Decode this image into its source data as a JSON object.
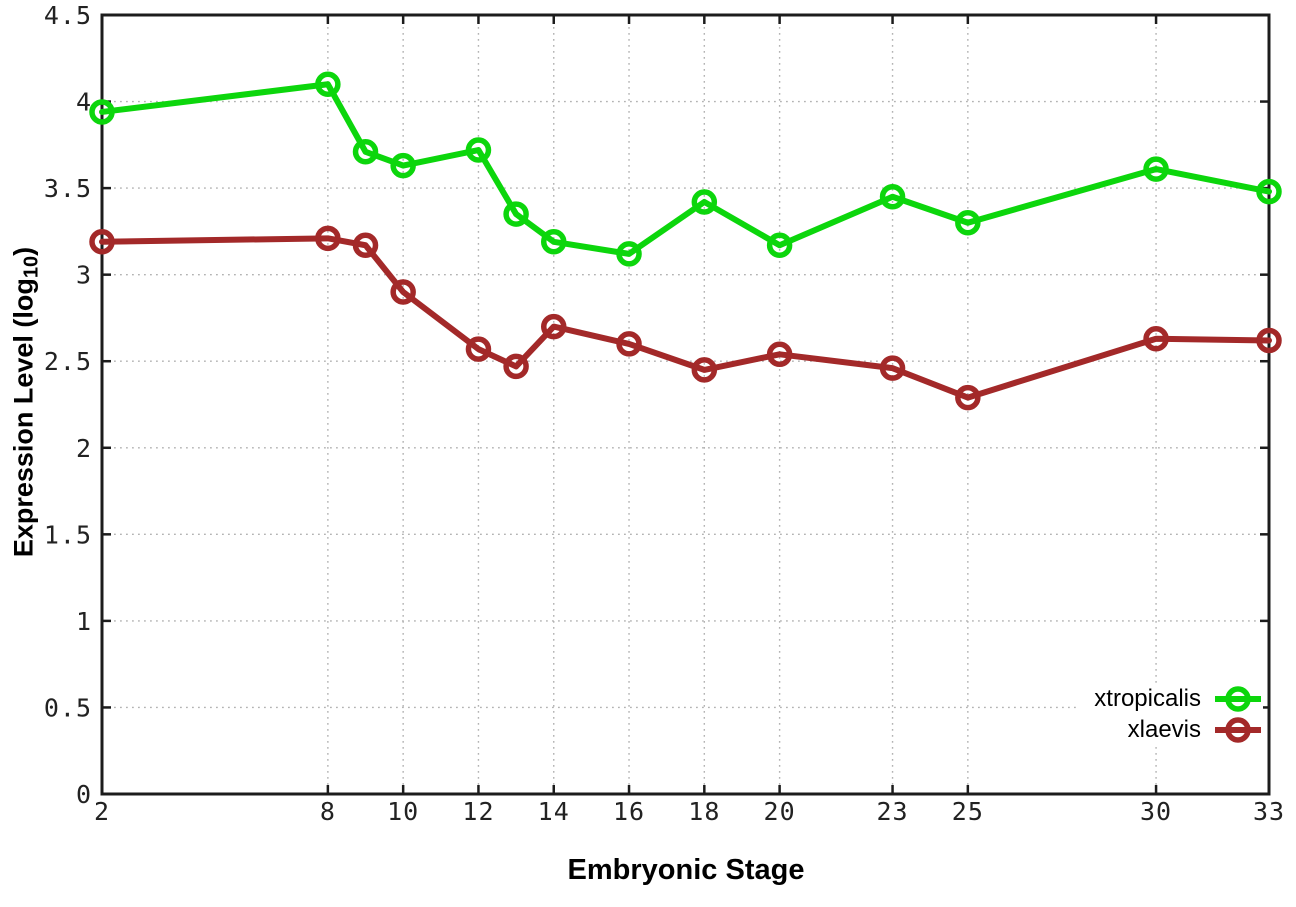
{
  "chart_data": {
    "type": "line",
    "title": "",
    "xlabel": "Embryonic Stage",
    "ylabel": "Expression Level (log10)",
    "ylabel_parts": {
      "main": "Expression Level (log",
      "sub": "10",
      "close": ")"
    },
    "x": [
      2,
      8,
      9,
      10,
      12,
      13,
      14,
      16,
      18,
      20,
      23,
      25,
      30,
      33
    ],
    "x_ticks": [
      2,
      8,
      10,
      12,
      14,
      16,
      18,
      20,
      23,
      25,
      30,
      33
    ],
    "xlim": [
      2,
      33
    ],
    "y_ticks": [
      "0",
      "0.5",
      "1",
      "1.5",
      "2",
      "2.5",
      "3",
      "3.5",
      "4",
      "4.5"
    ],
    "y_tick_values": [
      0,
      0.5,
      1,
      1.5,
      2,
      2.5,
      3,
      3.5,
      4,
      4.5
    ],
    "ylim": [
      0,
      4.5
    ],
    "grid": "dotted",
    "legend_position": "inside-bottom-right",
    "marker": "open-circle",
    "series": [
      {
        "name": "xtropicalis",
        "color": "#0cd60c",
        "values": [
          3.94,
          4.1,
          3.71,
          3.63,
          3.72,
          3.35,
          3.19,
          3.12,
          3.42,
          3.17,
          3.45,
          3.3,
          3.61,
          3.48
        ]
      },
      {
        "name": "xlaevis",
        "color": "#a32929",
        "values": [
          3.19,
          3.21,
          3.17,
          2.9,
          2.57,
          2.47,
          2.7,
          2.6,
          2.45,
          2.54,
          2.46,
          2.29,
          2.63,
          2.62
        ]
      }
    ]
  },
  "colors": {
    "background": "#ffffff",
    "grid": "#b3b3b3",
    "axis": "#1c1c1c",
    "tick_label": "#222222"
  }
}
